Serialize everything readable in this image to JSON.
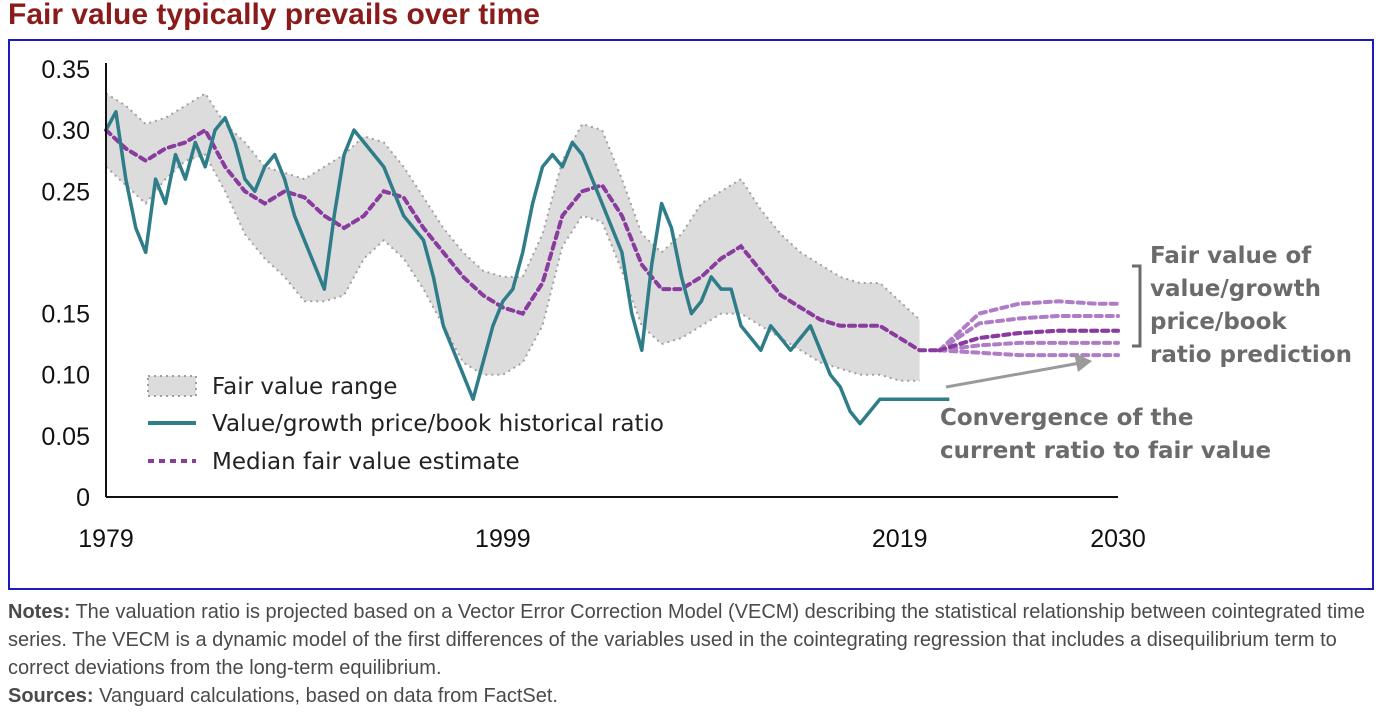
{
  "title": "Fair value typically prevails over time",
  "chart_data": {
    "type": "line",
    "x_ticks": [
      "1979",
      "1999",
      "2019",
      "2030"
    ],
    "y_ticks": [
      "0",
      "0.05",
      "0.10",
      "0.15",
      "0.25",
      "0.30",
      "0.35"
    ],
    "ylim": [
      0,
      0.35
    ],
    "xlim": [
      1979,
      2030
    ],
    "legend_position": "bottom-left",
    "series": [
      {
        "name": "Fair value range",
        "kind": "band",
        "color": "#dcdcdc",
        "x": [
          1979,
          1980,
          1981,
          1982,
          1983,
          1984,
          1985,
          1986,
          1987,
          1988,
          1989,
          1990,
          1991,
          1992,
          1993,
          1994,
          1995,
          1996,
          1997,
          1998,
          1999,
          2000,
          2001,
          2002,
          2003,
          2004,
          2005,
          2006,
          2007,
          2008,
          2009,
          2010,
          2011,
          2012,
          2013,
          2014,
          2015,
          2016,
          2017,
          2018,
          2019,
          2020
        ],
        "upper": [
          0.33,
          0.32,
          0.305,
          0.31,
          0.32,
          0.33,
          0.305,
          0.29,
          0.27,
          0.265,
          0.26,
          0.27,
          0.28,
          0.295,
          0.29,
          0.27,
          0.245,
          0.22,
          0.2,
          0.185,
          0.18,
          0.18,
          0.215,
          0.275,
          0.305,
          0.3,
          0.26,
          0.215,
          0.2,
          0.215,
          0.24,
          0.25,
          0.26,
          0.235,
          0.215,
          0.2,
          0.19,
          0.18,
          0.175,
          0.175,
          0.16,
          0.145
        ],
        "lower": [
          0.27,
          0.255,
          0.24,
          0.26,
          0.275,
          0.28,
          0.25,
          0.215,
          0.195,
          0.18,
          0.16,
          0.16,
          0.165,
          0.195,
          0.21,
          0.195,
          0.17,
          0.14,
          0.11,
          0.1,
          0.1,
          0.11,
          0.14,
          0.205,
          0.23,
          0.225,
          0.185,
          0.14,
          0.125,
          0.13,
          0.14,
          0.15,
          0.15,
          0.14,
          0.13,
          0.12,
          0.11,
          0.105,
          0.1,
          0.1,
          0.095,
          0.095
        ]
      },
      {
        "name": "Value/growth price/book historical ratio",
        "kind": "line",
        "color": "#2e7d89",
        "x": [
          1979,
          1979.5,
          1980,
          1980.5,
          1981,
          1981.5,
          1982,
          1982.5,
          1983,
          1983.5,
          1984,
          1984.5,
          1985,
          1985.5,
          1986,
          1986.5,
          1987,
          1987.5,
          1988,
          1988.5,
          1989,
          1989.5,
          1990,
          1990.5,
          1991,
          1991.5,
          1992,
          1992.5,
          1993,
          1993.5,
          1994,
          1994.5,
          1995,
          1995.5,
          1996,
          1996.5,
          1997,
          1997.5,
          1998,
          1998.5,
          1999,
          1999.5,
          2000,
          2000.5,
          2001,
          2001.5,
          2002,
          2002.5,
          2003,
          2003.5,
          2004,
          2004.5,
          2005,
          2005.5,
          2006,
          2006.5,
          2007,
          2007.5,
          2008,
          2008.5,
          2009,
          2009.5,
          2010,
          2010.5,
          2011,
          2011.5,
          2012,
          2012.5,
          2013,
          2013.5,
          2014,
          2014.5,
          2015,
          2015.5,
          2016,
          2016.5,
          2017,
          2017.5,
          2018,
          2018.5,
          2019,
          2019.5,
          2020,
          2020.5,
          2021,
          2021.5
        ],
        "values": [
          0.3,
          0.315,
          0.26,
          0.22,
          0.2,
          0.26,
          0.24,
          0.28,
          0.26,
          0.29,
          0.27,
          0.3,
          0.31,
          0.29,
          0.26,
          0.25,
          0.27,
          0.28,
          0.26,
          0.23,
          0.21,
          0.19,
          0.17,
          0.23,
          0.28,
          0.3,
          0.29,
          0.28,
          0.27,
          0.25,
          0.23,
          0.22,
          0.21,
          0.18,
          0.14,
          0.12,
          0.1,
          0.08,
          0.11,
          0.14,
          0.16,
          0.17,
          0.2,
          0.24,
          0.27,
          0.28,
          0.27,
          0.29,
          0.28,
          0.26,
          0.24,
          0.22,
          0.2,
          0.15,
          0.12,
          0.19,
          0.24,
          0.22,
          0.18,
          0.15,
          0.16,
          0.18,
          0.17,
          0.17,
          0.14,
          0.13,
          0.12,
          0.14,
          0.13,
          0.12,
          0.13,
          0.14,
          0.12,
          0.1,
          0.09,
          0.07,
          0.06,
          0.07,
          0.08,
          0.08,
          0.08,
          0.08,
          0.08,
          0.08,
          0.08,
          0.08
        ]
      },
      {
        "name": "Median fair value estimate",
        "kind": "dashed",
        "color": "#8a3c9e",
        "x": [
          1979,
          1980,
          1981,
          1982,
          1983,
          1984,
          1985,
          1986,
          1987,
          1988,
          1989,
          1990,
          1991,
          1992,
          1993,
          1994,
          1995,
          1996,
          1997,
          1998,
          1999,
          2000,
          2001,
          2002,
          2003,
          2004,
          2005,
          2006,
          2007,
          2008,
          2009,
          2010,
          2011,
          2012,
          2013,
          2014,
          2015,
          2016,
          2017,
          2018,
          2019,
          2020,
          2021
        ],
        "values": [
          0.3,
          0.285,
          0.275,
          0.285,
          0.29,
          0.3,
          0.27,
          0.25,
          0.24,
          0.25,
          0.245,
          0.23,
          0.22,
          0.23,
          0.25,
          0.245,
          0.22,
          0.2,
          0.18,
          0.165,
          0.155,
          0.15,
          0.175,
          0.23,
          0.25,
          0.255,
          0.23,
          0.19,
          0.17,
          0.17,
          0.18,
          0.195,
          0.205,
          0.185,
          0.165,
          0.155,
          0.145,
          0.14,
          0.14,
          0.14,
          0.13,
          0.12,
          0.12
        ]
      }
    ],
    "projections": {
      "color": "#b07cc6",
      "x": [
        2021,
        2023,
        2025,
        2027,
        2029,
        2030
      ],
      "paths": [
        [
          0.12,
          0.15,
          0.158,
          0.16,
          0.158,
          0.158
        ],
        [
          0.12,
          0.142,
          0.146,
          0.148,
          0.148,
          0.148
        ],
        [
          0.12,
          0.13,
          0.134,
          0.136,
          0.136,
          0.136
        ],
        [
          0.12,
          0.124,
          0.126,
          0.126,
          0.126,
          0.126
        ],
        [
          0.12,
          0.118,
          0.116,
          0.116,
          0.116,
          0.116
        ]
      ]
    },
    "legend": [
      {
        "label": "Fair value range",
        "style": "band"
      },
      {
        "label": "Value/growth price/book historical ratio",
        "style": "line"
      },
      {
        "label": "Median fair value estimate",
        "style": "dashed"
      }
    ],
    "annotations": {
      "prediction_label": [
        "Fair value of",
        "value/growth",
        "price/book",
        "ratio prediction"
      ],
      "convergence_label": [
        "Convergence of the",
        "current ratio to fair value"
      ],
      "color": "#6b6b6b"
    }
  },
  "notes": {
    "notes_label": "Notes:",
    "notes_text": "The valuation ratio is projected based on a Vector Error Correction Model (VECM) describing the statistical relationship between cointegrated time series. The VECM is a dynamic model of the first differences of the variables used in the cointegrating regression that includes a disequilibrium term to correct deviations from the long-term equilibrium.",
    "sources_label": "Sources:",
    "sources_text": "Vanguard calculations, based on data from FactSet."
  }
}
